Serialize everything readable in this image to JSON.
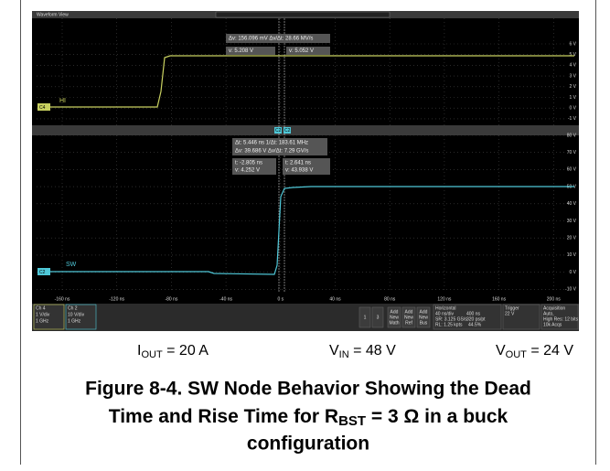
{
  "scope": {
    "window_title": "Waveform View",
    "top_pane": {
      "channel": "C4",
      "trace_label": "HI",
      "y_labels": [
        "6 V",
        "5 V",
        "4 V",
        "3 V",
        "2 V",
        "1 V",
        "0 V",
        "-1 V"
      ],
      "readout_delta": "Δv: 156.096 mV   Δv/Δt: 28.66 MV/s",
      "readout_a": "v: 5.208 V",
      "readout_b": "v: 5.052 V"
    },
    "divider_markers": [
      "C2",
      "C2"
    ],
    "bottom_pane": {
      "channel": "C2",
      "trace_label": "SW",
      "y_labels": [
        "80 V",
        "70 V",
        "60 V",
        "50 V",
        "40 V",
        "30 V",
        "20 V",
        "10 V",
        "0 V",
        "-10 V"
      ],
      "readout_delta": [
        "Δt: 5.446 ns   1/Δt: 183.61 MHz",
        "Δv: 39.686 V   Δv/Δt: 7.29 GV/s"
      ],
      "readout_a": [
        "t: -2.805 ns",
        "v: 4.252 V"
      ],
      "readout_b": [
        "t: 2.641 ns",
        "v: 43.938 V"
      ]
    },
    "x_labels": [
      "-160 ns",
      "-120 ns",
      "-80 ns",
      "-40 ns",
      "0 s",
      "40 ns",
      "80 ns",
      "120 ns",
      "160 ns",
      "200 ns"
    ],
    "status": {
      "ch4": [
        "Ch 4",
        "1 V/div",
        "1 GHz"
      ],
      "ch2": [
        "Ch 2",
        "10 V/div",
        "1 GHz"
      ],
      "buttons": [
        "1",
        "3"
      ],
      "add": [
        [
          "Add",
          "New",
          "Math"
        ],
        [
          "Add",
          "New",
          "Ref"
        ],
        [
          "Add",
          "New",
          "Bus"
        ]
      ],
      "horizontal": [
        "Horizontal",
        "40 ns/div",
        "400 ns",
        "SR: 3.125 GS/s",
        "320 ps/pt",
        "RL: 1.25 kpts",
        "44.5%"
      ],
      "trigger": [
        "Trigger",
        "22 V"
      ],
      "acquisition": [
        "Acquisition",
        "Auto,",
        "High Res: 12 bits",
        "10k Acqs"
      ]
    }
  },
  "caption": {
    "conditions": [
      {
        "symbol": "I",
        "sub": "OUT",
        "value": " = 20 A"
      },
      {
        "symbol": "V",
        "sub": "IN",
        "value": " = 48 V"
      },
      {
        "symbol": "V",
        "sub": "OUT",
        "value": " = 24 V"
      }
    ],
    "title": [
      "Figure 8-4. SW Node Behavior Showing the Dead",
      "Time and Rise Time for R",
      "BST",
      " = 3 Ω in a buck",
      "configuration"
    ]
  }
}
